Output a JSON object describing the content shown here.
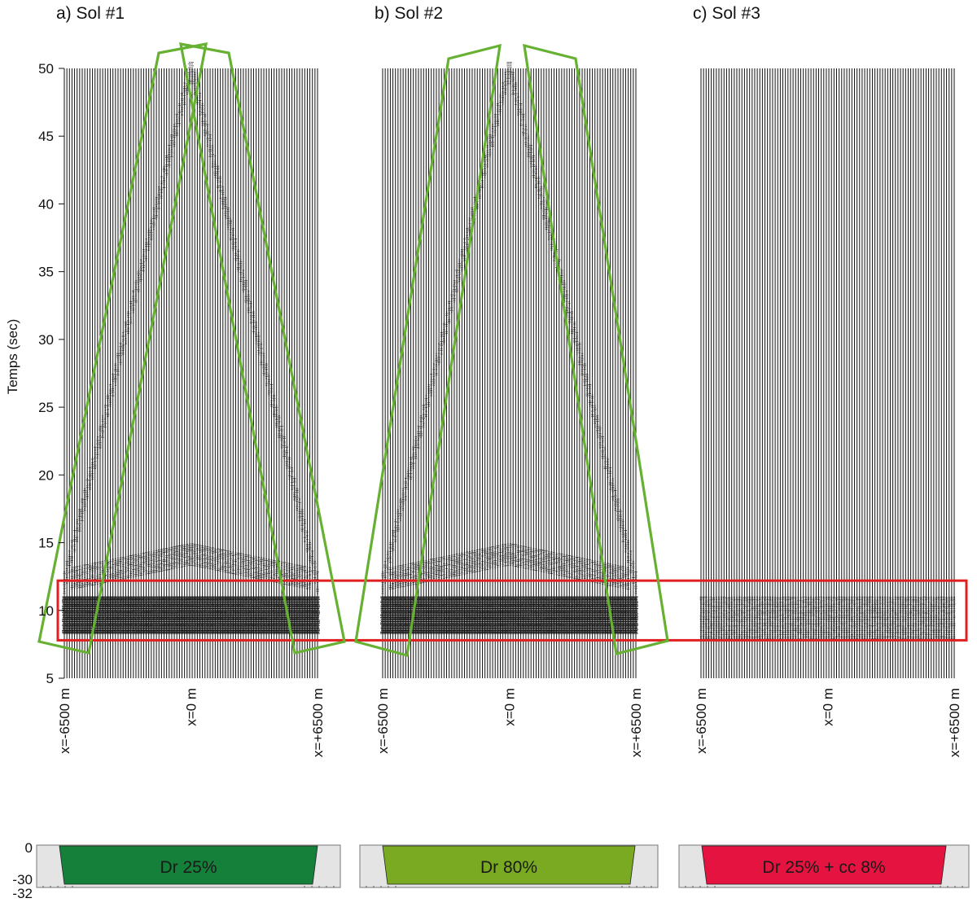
{
  "chart_data": {
    "type": "seismic-trace-panels",
    "ylabel": "Temps (sec)",
    "ylim": [
      5,
      50
    ],
    "yticks": [
      5,
      10,
      15,
      20,
      25,
      30,
      35,
      40,
      45,
      50
    ],
    "x_range_m": [
      -6500,
      6500
    ],
    "n_traces": 100,
    "panels": [
      {
        "id": "a",
        "title": "a) Sol #1",
        "xticks": [
          "x=-6500 m",
          "x=0 m",
          "x=+6500 m"
        ],
        "main_band_time_s": [
          8.3,
          11.0
        ],
        "v_wave_apex_time_s": 50,
        "v_wave_base_time_s": 12,
        "wave_amplitude": "strong",
        "soil_column": {
          "label": "Dr 25%",
          "color": "#15803a",
          "depth_labels": [
            "0",
            "-30",
            "-32"
          ]
        }
      },
      {
        "id": "b",
        "title": "b) Sol #2",
        "xticks": [
          "x=-6500 m",
          "x=0 m",
          "x=+6500 m"
        ],
        "main_band_time_s": [
          8.3,
          11.0
        ],
        "v_wave_apex_time_s": 50,
        "v_wave_base_time_s": 12,
        "wave_amplitude": "strong",
        "soil_column": {
          "label": "Dr 80%",
          "color": "#7aaa22",
          "depth_labels": []
        }
      },
      {
        "id": "c",
        "title": "c) Sol #3",
        "xticks": [
          "x=-6500 m",
          "x=0 m",
          "x=+6500 m"
        ],
        "main_band_time_s": [
          7.9,
          11.0
        ],
        "wave_amplitude": "weak",
        "soil_column": {
          "label": "Dr 25% + cc 8%",
          "color": "#e5133f",
          "depth_labels": []
        }
      }
    ],
    "annotations": [
      {
        "kind": "rectangle",
        "color": "#e02020",
        "time_s": [
          7.8,
          12.2
        ],
        "span": "all panels"
      },
      {
        "kind": "parallelograms",
        "color": "#66b032",
        "follows": "v-shaped wave arrivals",
        "panels": [
          "a",
          "b"
        ]
      }
    ]
  },
  "colors": {
    "trace": "#111111",
    "green_box": "#66b032",
    "red_box": "#e02020"
  }
}
